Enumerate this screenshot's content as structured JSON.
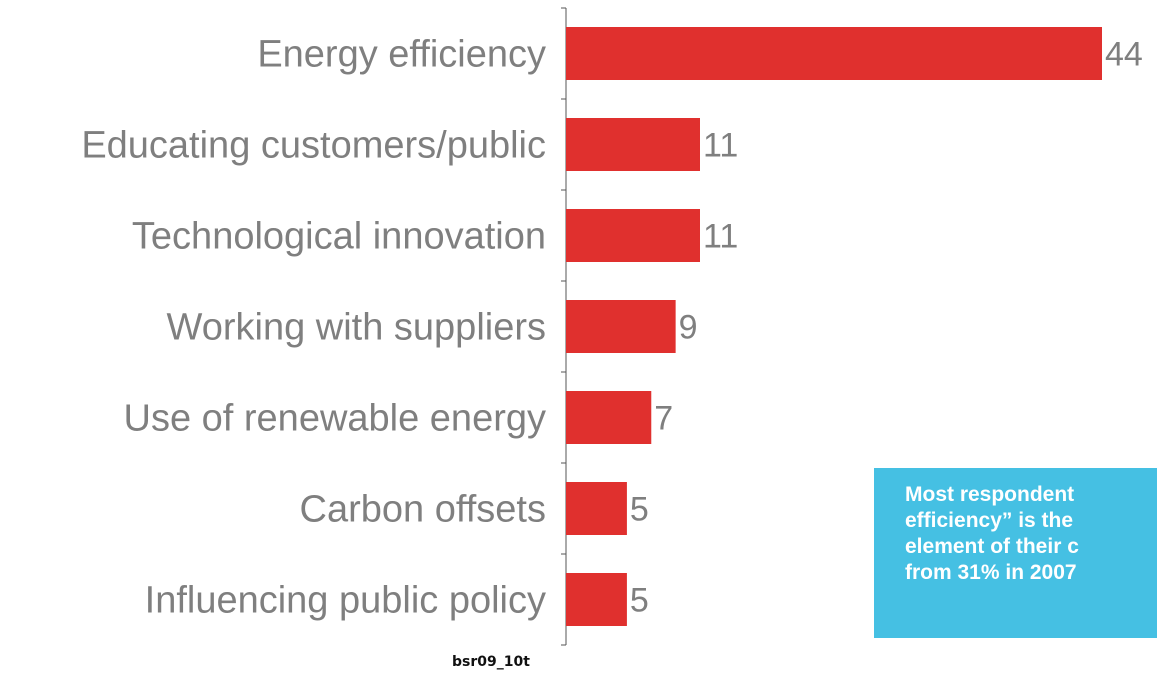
{
  "colors": {
    "bar": "#e0302e",
    "label_text": "#7f7f7f",
    "axis": "#555555",
    "callout_bg": "#45c0e3",
    "callout_text": "#ffffff"
  },
  "chart_data": {
    "type": "bar",
    "orientation": "horizontal",
    "title": "",
    "xlabel": "",
    "ylabel": "",
    "categories": [
      "Energy efficiency",
      "Educating customers/public",
      "Technological innovation",
      "Working with suppliers",
      "Use of renewable energy",
      "Carbon offsets",
      "Influencing public policy"
    ],
    "values": [
      44,
      11,
      11,
      9,
      7,
      5,
      5
    ],
    "value_labels": [
      "44",
      "11",
      "11",
      "9",
      "7",
      "5",
      "5"
    ],
    "xlim": [
      0,
      44
    ],
    "grid": false,
    "legend": "none"
  },
  "callout": {
    "lines": [
      "Most respondent",
      "efficiency” is the",
      "element of their c",
      "from 31% in 2007"
    ]
  },
  "footer": {
    "code": "bsr09_10t"
  }
}
